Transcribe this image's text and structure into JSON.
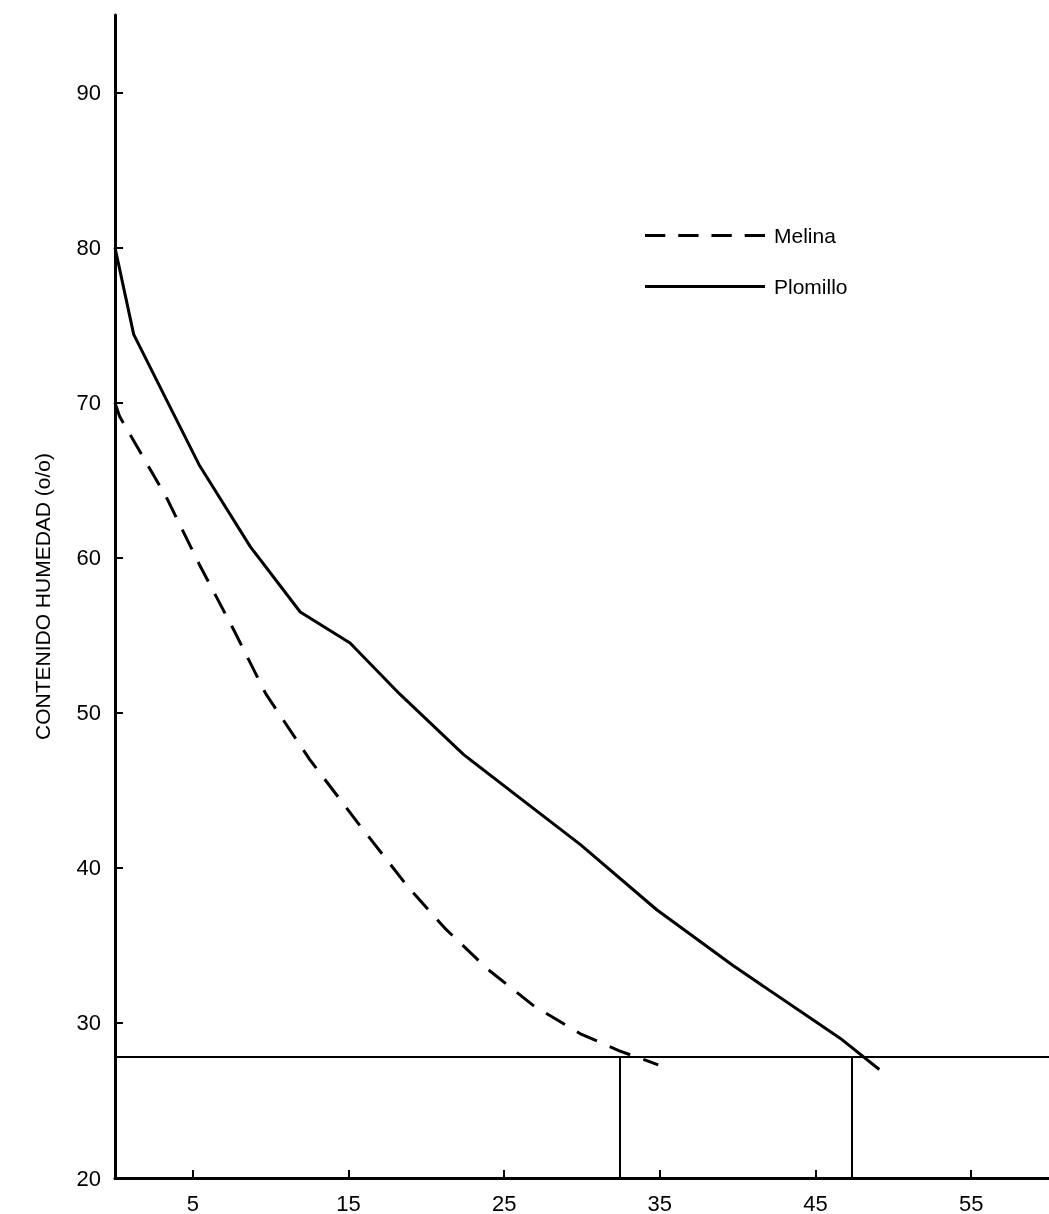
{
  "chart_data": {
    "type": "line",
    "ylabel": "CONTENIDO HUMEDAD (o/o)",
    "xlim": [
      0,
      60
    ],
    "xticks": [
      5,
      15,
      25,
      35,
      45,
      55
    ],
    "ylim": [
      20,
      95
    ],
    "yticks": [
      20,
      30,
      40,
      50,
      60,
      70,
      80,
      90
    ],
    "grid": false,
    "legend": "top right",
    "marker": "none",
    "series": [
      {
        "name": "Melina",
        "color": "#000000",
        "line_style": "dashed",
        "x": [
          0,
          0.3,
          3.3,
          5.4,
          7.6,
          9.7,
          12.5,
          15.6,
          18.8,
          21.2,
          23.9,
          26.9,
          29.9,
          32.4,
          34.9
        ],
        "values": [
          70,
          69.1,
          63.9,
          59.6,
          55.4,
          51.2,
          47,
          42.9,
          38.8,
          36.1,
          33.5,
          31.1,
          29.3,
          28.2,
          27.3
        ]
      },
      {
        "name": "Plomillo",
        "color": "#000000",
        "line_style": "solid",
        "x": [
          0,
          1.2,
          3.3,
          5.4,
          8.7,
          11.9,
          15.1,
          18.3,
          22.4,
          29.9,
          34.8,
          39.7,
          46.6,
          49.1
        ],
        "values": [
          80,
          74.4,
          70.2,
          66,
          60.7,
          56.5,
          54.5,
          51.2,
          47.3,
          41.5,
          37.3,
          33.7,
          29,
          27
        ]
      }
    ],
    "ref_lines": [
      {
        "axis": "y",
        "value": 27.8,
        "color": "#000000"
      },
      {
        "axis": "x",
        "value": 32.4,
        "color": "#000000"
      },
      {
        "axis": "x",
        "value": 47.3,
        "color": "#000000"
      }
    ]
  }
}
